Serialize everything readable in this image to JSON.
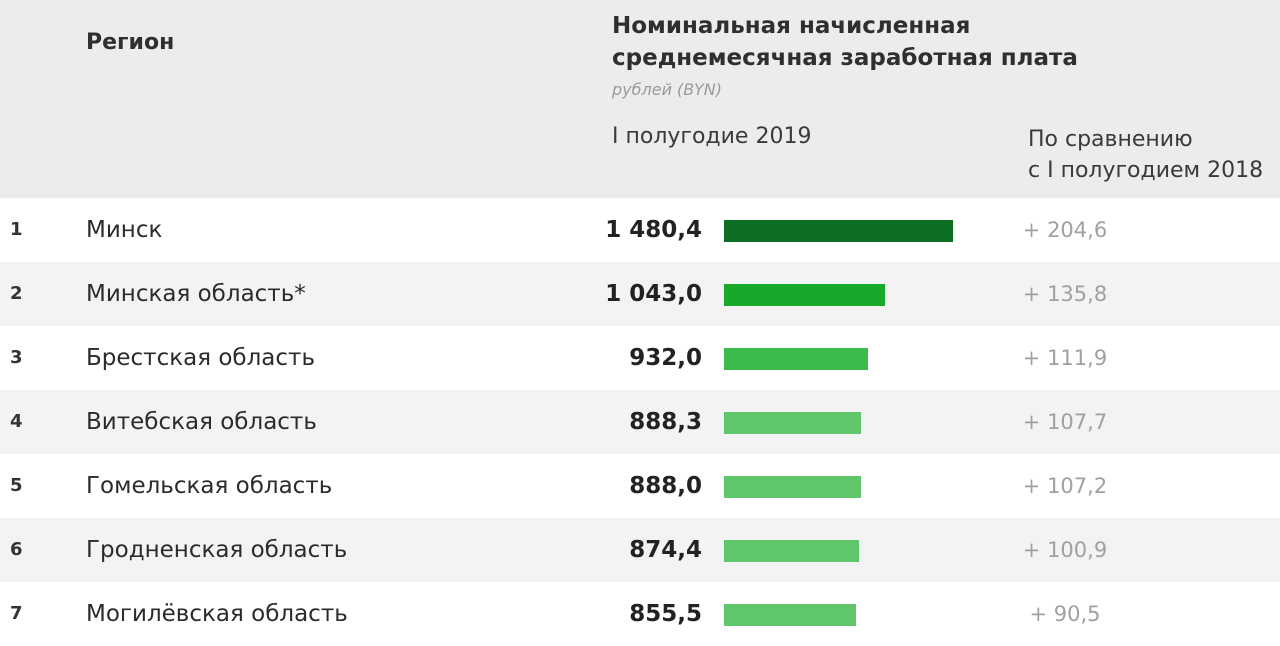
{
  "header": {
    "region_label": "Регион",
    "title_line1": "Номинальная начисленная",
    "title_line2": "среднемесячная заработная плата",
    "unit": "рублей (BYN)",
    "period": "I полугодие 2019",
    "compare_line1": "По сравнению",
    "compare_line2": "с I полугодием 2018"
  },
  "colors": {
    "bar_rank1": "#0c6e22",
    "bar_rank2": "#18a82a",
    "bar_rank3": "#3cbb4d",
    "bar_rest": "#5fc66c"
  },
  "rows": [
    {
      "rank": "1",
      "region": "Минск",
      "value_text": "1 480,4",
      "delta": "+ 204,6"
    },
    {
      "rank": "2",
      "region": "Минская область*",
      "value_text": "1 043,0",
      "delta": "+ 135,8"
    },
    {
      "rank": "3",
      "region": "Брестская область",
      "value_text": "932,0",
      "delta": "+ 111,9"
    },
    {
      "rank": "4",
      "region": "Витебская область",
      "value_text": "888,3",
      "delta": "+ 107,7"
    },
    {
      "rank": "5",
      "region": "Гомельская область",
      "value_text": "888,0",
      "delta": "+ 107,2"
    },
    {
      "rank": "6",
      "region": "Гродненская область",
      "value_text": "874,4",
      "delta": "+ 100,9"
    },
    {
      "rank": "7",
      "region": "Могилёвская область",
      "value_text": "855,5",
      "delta": "+ 90,5"
    }
  ],
  "chart_data": {
    "type": "bar",
    "orientation": "horizontal",
    "title": "Номинальная начисленная среднемесячная заработная плата",
    "ylabel": "рублей (BYN)",
    "categories": [
      "Минск",
      "Минская область*",
      "Брестская область",
      "Витебская область",
      "Гомельская область",
      "Гродненская область",
      "Могилёвская область"
    ],
    "series": [
      {
        "name": "I полугодие 2019",
        "values": [
          1480.4,
          1043.0,
          932.0,
          888.3,
          888.0,
          874.4,
          855.5
        ]
      },
      {
        "name": "По сравнению с I полугодием 2018",
        "values": [
          204.6,
          135.8,
          111.9,
          107.7,
          107.2,
          100.9,
          90.5
        ]
      }
    ],
    "grid": false,
    "legend": "none"
  }
}
